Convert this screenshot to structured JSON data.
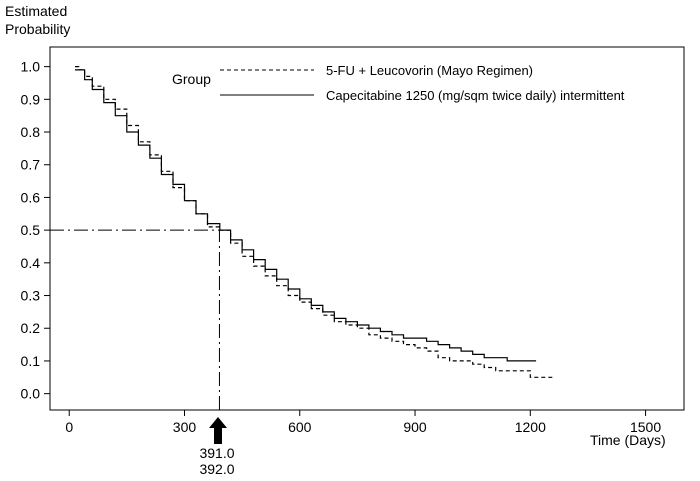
{
  "chart_data": {
    "type": "line",
    "ylabel_lines": [
      "Estimated",
      "Probability"
    ],
    "xlabel": "Time (Days)",
    "xlim": [
      -50,
      1600
    ],
    "ylim": [
      -0.05,
      1.06
    ],
    "xticks": [
      0,
      300,
      600,
      900,
      1200,
      1500
    ],
    "xtick_labels": [
      "0",
      "300",
      "600",
      "900",
      "1200",
      "1500"
    ],
    "yticks": [
      0.0,
      0.1,
      0.2,
      0.3,
      0.4,
      0.5,
      0.6,
      0.7,
      0.8,
      0.9,
      1.0
    ],
    "ytick_labels": [
      "0.0",
      "0.1",
      "0.2",
      "0.3",
      "0.4",
      "0.5",
      "0.6",
      "0.7",
      "0.8",
      "0.9",
      "1.0"
    ],
    "grid": false,
    "legend": {
      "title": "Group",
      "placement": "top-right",
      "entries": [
        "5-FU + Leucovorin (Mayo Regimen)",
        "Capecitabine 1250 (mg/sqm twice daily) intermittent"
      ]
    },
    "series": [
      {
        "name": "5-FU + Leucovorin (Mayo Regimen)",
        "style": "dashed",
        "x": [
          15,
          25,
          40,
          60,
          90,
          120,
          150,
          180,
          210,
          240,
          270,
          300,
          330,
          360,
          391,
          420,
          450,
          480,
          510,
          540,
          570,
          600,
          630,
          660,
          690,
          720,
          750,
          780,
          810,
          840,
          870,
          900,
          930,
          960,
          990,
          1020,
          1050,
          1080,
          1110,
          1140,
          1170,
          1200,
          1230,
          1260
        ],
        "y": [
          1.0,
          0.99,
          0.97,
          0.94,
          0.9,
          0.87,
          0.82,
          0.77,
          0.73,
          0.68,
          0.63,
          0.59,
          0.55,
          0.51,
          0.5,
          0.46,
          0.42,
          0.39,
          0.36,
          0.33,
          0.3,
          0.28,
          0.26,
          0.24,
          0.22,
          0.21,
          0.2,
          0.18,
          0.17,
          0.16,
          0.15,
          0.14,
          0.13,
          0.11,
          0.1,
          0.1,
          0.09,
          0.08,
          0.07,
          0.07,
          0.07,
          0.05,
          0.05,
          0.05
        ]
      },
      {
        "name": "Capecitabine 1250 (mg/sqm twice daily) intermittent",
        "style": "solid",
        "x": [
          15,
          25,
          40,
          60,
          90,
          120,
          150,
          180,
          210,
          240,
          270,
          300,
          330,
          360,
          392,
          420,
          450,
          480,
          510,
          540,
          570,
          600,
          630,
          660,
          690,
          720,
          750,
          780,
          810,
          840,
          870,
          900,
          930,
          960,
          990,
          1020,
          1050,
          1080,
          1110,
          1140,
          1170,
          1200,
          1215
        ],
        "y": [
          0.99,
          0.99,
          0.96,
          0.93,
          0.89,
          0.85,
          0.8,
          0.76,
          0.72,
          0.67,
          0.64,
          0.59,
          0.55,
          0.52,
          0.5,
          0.47,
          0.44,
          0.41,
          0.38,
          0.35,
          0.32,
          0.29,
          0.27,
          0.25,
          0.23,
          0.22,
          0.21,
          0.2,
          0.19,
          0.18,
          0.17,
          0.17,
          0.16,
          0.15,
          0.14,
          0.13,
          0.12,
          0.11,
          0.11,
          0.1,
          0.1,
          0.1,
          0.1
        ]
      }
    ],
    "reference_lines": [
      {
        "type": "horizontal",
        "y": 0.5,
        "x_from": -50,
        "x_to": 391,
        "style": "dash-dot"
      },
      {
        "type": "vertical",
        "x": 391,
        "y_from": -0.05,
        "y_to": 0.5,
        "style": "dash-dot"
      }
    ],
    "annotations": [
      {
        "text": "391.0",
        "x": 391,
        "kind": "median"
      },
      {
        "text": "392.0",
        "x": 392,
        "kind": "median"
      }
    ]
  }
}
